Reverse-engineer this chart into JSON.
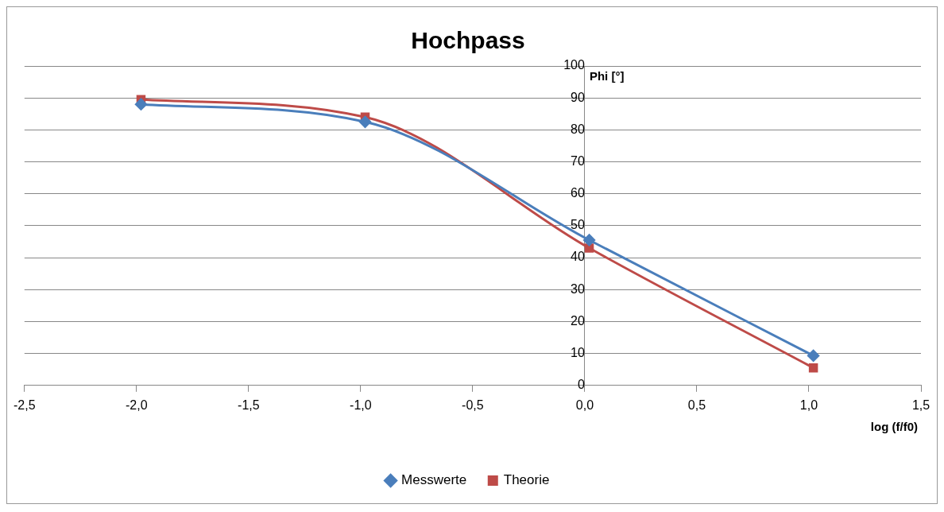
{
  "chart_data": {
    "type": "line",
    "title": "Hochpass",
    "xlabel": "log (f/f0)",
    "ylabel": "Phi [°]",
    "xlim": [
      -2.5,
      1.5
    ],
    "xticks": [
      {
        "value": -2.5,
        "label": "-2,5"
      },
      {
        "value": -2,
        "label": "-2,0"
      },
      {
        "value": -1.5,
        "label": "-1,5"
      },
      {
        "value": -1,
        "label": "-1,0"
      },
      {
        "value": -0.5,
        "label": "-0,5"
      },
      {
        "value": 0,
        "label": "0,0"
      },
      {
        "value": 0.5,
        "label": "0,5"
      },
      {
        "value": 1,
        "label": "1,0"
      },
      {
        "value": 1.5,
        "label": "1,5"
      }
    ],
    "ylim": [
      0,
      100
    ],
    "yticks": [
      0,
      10,
      20,
      30,
      40,
      50,
      60,
      70,
      80,
      90,
      100
    ],
    "grid": "y",
    "legend": "bottom",
    "line_style": "solid",
    "series": [
      {
        "name": "Messwerte",
        "color": "#4a7ebb",
        "marker": "diamond",
        "x": [
          -1.98,
          -0.98,
          0.02,
          1.02
        ],
        "values": [
          88,
          82.5,
          45.5,
          9.3
        ]
      },
      {
        "name": "Theorie",
        "color": "#be4b48",
        "marker": "square",
        "x": [
          -1.98,
          -0.98,
          0.02,
          1.02
        ],
        "values": [
          89.5,
          84,
          43,
          5.5
        ]
      }
    ]
  }
}
